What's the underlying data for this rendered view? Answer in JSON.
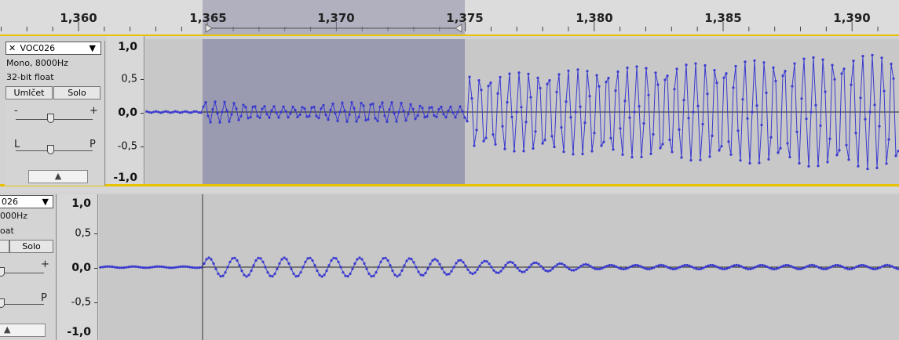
{
  "ruler": {
    "ticks": [
      "1,360",
      "1,365",
      "1,370",
      "1,375",
      "1,380",
      "1,385",
      "1,390"
    ]
  },
  "track1": {
    "name": "VOC026",
    "format": "Mono, 8000Hz",
    "bit_depth": "32-bit float",
    "mute_label": "Umlčet",
    "solo_label": "Solo",
    "gain_minus": "-",
    "gain_plus": "+",
    "pan_left": "L",
    "pan_right": "P",
    "collapse_glyph": "▲"
  },
  "track2": {
    "name_partial": "026",
    "format_partial": "000Hz",
    "bit_depth_partial": "oat",
    "solo_label": "Solo",
    "gain_plus": "+",
    "pan_right": "P",
    "collapse_glyph": "▲"
  },
  "vscale": {
    "top": "1,0",
    "upper": "0,5",
    "zero": "0,0",
    "lower": "-0,5",
    "bottom": "-1,0"
  },
  "colors": {
    "waveform": "#3a3ad0",
    "selection": "#9a9ab0",
    "track_bg": "#c8c8c8",
    "focus_border": "#e6c200"
  },
  "icons": {
    "close": "close-icon",
    "menu": "chevron-down-icon",
    "collapse": "triangle-up-icon"
  }
}
